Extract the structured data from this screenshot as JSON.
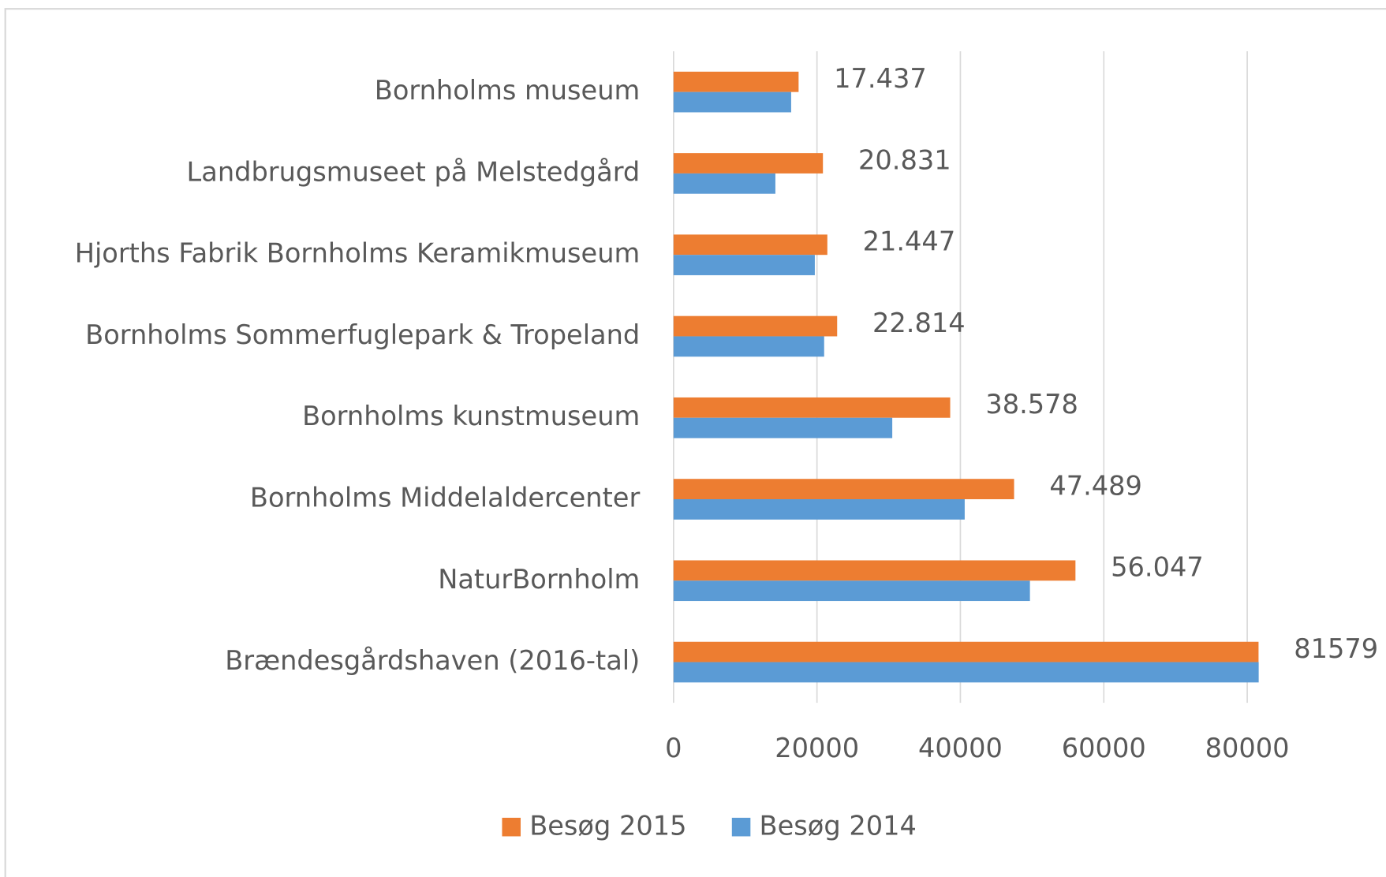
{
  "chart_data": {
    "type": "hbar",
    "categories": [
      "Bornholms museum",
      "Landbrugsmuseet på Melstedgård",
      "Hjorths Fabrik Bornholms Keramikmuseum",
      "Bornholms Sommerfuglepark & Tropeland",
      "Bornholms kunstmuseum",
      "Bornholms Middelaldercenter",
      "NaturBornholm",
      "Brændesgårdshaven (2016-tal)"
    ],
    "series": [
      {
        "name": "Besøg 2015",
        "color": "#ed7d31",
        "values": [
          17437,
          20831,
          21447,
          22814,
          38578,
          47489,
          56047,
          81579
        ],
        "value_labels": [
          "17.437",
          "20.831",
          "21.447",
          "22.814",
          "38.578",
          "47.489",
          "56.047",
          "81579"
        ]
      },
      {
        "name": "Besøg 2014",
        "color": "#5b9bd5",
        "values": [
          16400,
          14200,
          19700,
          21000,
          30500,
          40600,
          49700,
          81600
        ]
      }
    ],
    "xlim": [
      0,
      80000
    ],
    "xticks": [
      0,
      20000,
      40000,
      60000,
      80000
    ],
    "grid": true,
    "legend": "bottom"
  }
}
